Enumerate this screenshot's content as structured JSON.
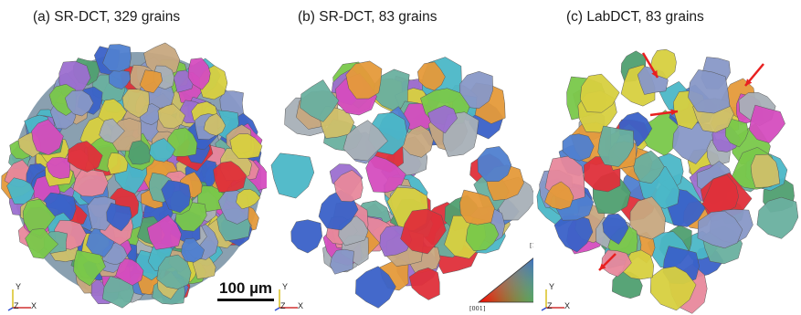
{
  "panels": [
    {
      "label": "(a) SR-DCT, 329 grains"
    },
    {
      "label": "(b) SR-DCT, 83 grains"
    },
    {
      "label": "(c) LabDCT, 83 grains"
    }
  ],
  "axes": {
    "y": "Y",
    "z": "Z",
    "x": "X"
  },
  "scale_bar": {
    "label": "100 µm"
  },
  "ipf_key": {
    "top": "[111]",
    "left": "[001]",
    "right": "[101]"
  },
  "palette": [
    "#e0303a",
    "#3a62c9",
    "#7ac94a",
    "#e59a3a",
    "#4bb8c8",
    "#d54dbf",
    "#cfc06a",
    "#9c6fd0",
    "#6ab0a0",
    "#a8b0b8",
    "#e8889c",
    "#8898c8",
    "#c8a880",
    "#50a070",
    "#d8d040",
    "#5080d0"
  ]
}
